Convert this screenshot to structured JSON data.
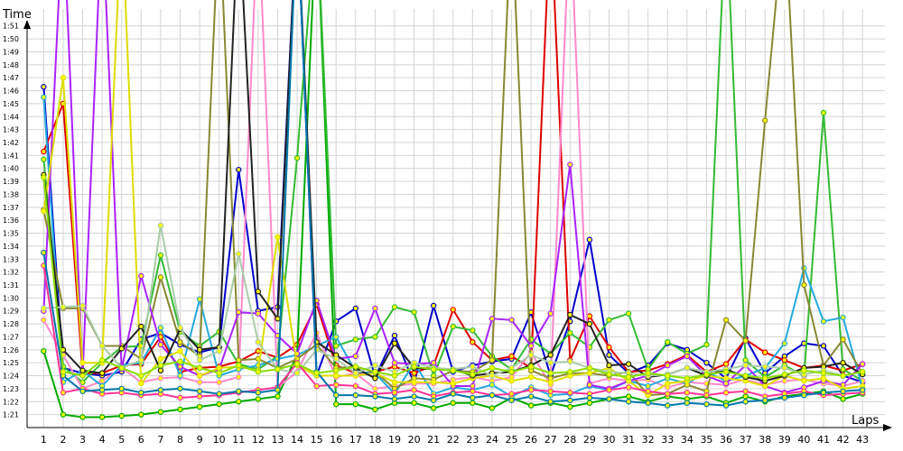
{
  "chart_data": {
    "type": "line",
    "xlabel": "Laps",
    "ylabel": "Time",
    "grid": true,
    "legend": "none",
    "x": [
      1,
      2,
      3,
      4,
      5,
      6,
      7,
      8,
      9,
      10,
      11,
      12,
      13,
      14,
      15,
      16,
      17,
      18,
      19,
      20,
      21,
      22,
      23,
      24,
      25,
      26,
      27,
      28,
      29,
      30,
      31,
      32,
      33,
      34,
      35,
      36,
      37,
      38,
      39,
      40,
      41,
      42,
      43
    ],
    "x_tick_labels": [
      "1",
      "2",
      "3",
      "4",
      "5",
      "6",
      "7",
      "8",
      "9",
      "10",
      "11",
      "12",
      "13",
      "14",
      "15",
      "16",
      "17",
      "18",
      "19",
      "20",
      "21",
      "22",
      "23",
      "24",
      "25",
      "26",
      "27",
      "28",
      "29",
      "30",
      "31",
      "32",
      "33",
      "34",
      "35",
      "36",
      "37",
      "38",
      "39",
      "40",
      "41",
      "42",
      "43"
    ],
    "y_tick_values": [
      81,
      82,
      83,
      84,
      85,
      86,
      87,
      88,
      89,
      90,
      91,
      92,
      93,
      94,
      95,
      96,
      97,
      98,
      99,
      100,
      101,
      102,
      103,
      104,
      105,
      106,
      107,
      108,
      109,
      110,
      111
    ],
    "y_tick_labels": [
      "1:21",
      "1:22",
      "1:23",
      "1:24",
      "1:25",
      "1:26",
      "1:27",
      "1:28",
      "1:29",
      "1:30",
      "1:31",
      "1:32",
      "1:33",
      "1:34",
      "1:35",
      "1:36",
      "1:37",
      "1:38",
      "1:39",
      "1:40",
      "1:41",
      "1:42",
      "1:43",
      "1:44",
      "1:45",
      "1:46",
      "1:47",
      "1:48",
      "1:49",
      "1:50",
      "1:51"
    ],
    "ylim": [
      80,
      113
    ],
    "series": [
      {
        "color": "#0000cc",
        "values": [
          106.3,
          84.6,
          84.2,
          84.0,
          84.3,
          86.8,
          87.3,
          86.4,
          85.8,
          86.2,
          99.9,
          89.0,
          89.3,
          120,
          84.0,
          88.2,
          89.2,
          83.9,
          87.1,
          83.4,
          89.4,
          84.3,
          84.8,
          85.1,
          85.3,
          88.9,
          84.0,
          88.2,
          94.5,
          85.6,
          84.2,
          84.8,
          86.5,
          86.0,
          85.0,
          83.8,
          86.9,
          84.2,
          85.5,
          86.5,
          86.3,
          84.0,
          83.5
        ]
      },
      {
        "color": "#dd0000",
        "values": [
          101.3,
          105.0,
          84.2,
          84.2,
          84.8,
          84.9,
          87.0,
          84.3,
          84.6,
          84.7,
          85.1,
          85.9,
          85.4,
          86.4,
          89.5,
          84.8,
          84.2,
          84.3,
          84.7,
          84.2,
          84.8,
          89.1,
          86.6,
          85.2,
          85.5,
          84.6,
          120,
          85.2,
          88.6,
          86.2,
          84.3,
          84.4,
          84.9,
          85.6,
          84.3,
          84.9,
          86.8,
          85.8,
          85.2,
          84.6,
          84.8,
          84.4,
          84.9
        ]
      },
      {
        "color": "#00aa00",
        "values": [
          85.9,
          81.0,
          80.8,
          80.8,
          80.9,
          81.0,
          81.2,
          81.4,
          81.6,
          81.8,
          82.0,
          82.2,
          82.4,
          85.6,
          120,
          81.8,
          81.8,
          81.4,
          81.9,
          81.9,
          81.5,
          81.9,
          81.9,
          81.5,
          82.3,
          81.7,
          81.9,
          81.6,
          81.9,
          82.2,
          82.4,
          82.0,
          82.4,
          82.2,
          82.4,
          81.9,
          82.4,
          82.0,
          82.4,
          82.6,
          82.8,
          82.2,
          82.6
        ]
      },
      {
        "color": "#33bb33",
        "values": [
          100.7,
          84.7,
          83.5,
          85.0,
          86.2,
          86.3,
          93.3,
          87.4,
          86.3,
          87.4,
          84.9,
          84.5,
          85.5,
          100.8,
          120,
          86.3,
          86.8,
          87.0,
          89.3,
          88.9,
          84.0,
          87.8,
          87.5,
          85.5,
          84.5,
          86.8,
          85.7,
          87.3,
          86.2,
          88.3,
          88.8,
          84.5,
          86.6,
          85.7,
          86.4,
          120,
          85.2,
          83.9,
          84.8,
          84.0,
          104.3,
          84.5,
          83.6
        ]
      },
      {
        "color": "#ff88cc",
        "values": [
          88.3,
          85.6,
          83.0,
          83.6,
          84.6,
          83.5,
          83.8,
          83.9,
          83.5,
          83.5,
          83.9,
          120,
          83.1,
          84.3,
          87.3,
          83.9,
          84.2,
          83.0,
          83.2,
          83.4,
          83.4,
          83.7,
          83.9,
          83.6,
          83.9,
          85.8,
          83.3,
          120,
          83.4,
          83.8,
          83.6,
          83.7,
          83.1,
          83.5,
          83.4,
          83.3,
          83.7,
          83.3,
          83.6,
          83.7,
          83.4,
          83.2,
          83.6
        ]
      },
      {
        "color": "#22aadd",
        "values": [
          105.5,
          83.5,
          84.4,
          83.2,
          84.8,
          85.0,
          87.7,
          84.0,
          89.9,
          84.0,
          84.5,
          84.8,
          85.3,
          85.6,
          86.3,
          87.0,
          84.3,
          84.2,
          82.6,
          85.0,
          82.6,
          83.1,
          82.9,
          83.3,
          82.4,
          83.1,
          82.5,
          82.6,
          83.2,
          82.9,
          83.6,
          83.2,
          83.8,
          83.4,
          84.3,
          83.6,
          84.0,
          84.6,
          86.5,
          92.3,
          88.2,
          88.5,
          83.0
        ]
      },
      {
        "color": "#888833",
        "values": [
          96.8,
          89.2,
          89.2,
          86.3,
          86.3,
          85.3,
          91.6,
          86.6,
          85.5,
          120,
          85.2,
          85.3,
          84.6,
          85.3,
          86.4,
          84.6,
          84.7,
          84.3,
          83.0,
          83.8,
          83.7,
          84.4,
          84.3,
          85.2,
          120,
          84.4,
          83.8,
          84.2,
          84.2,
          84.0,
          84.3,
          82.5,
          82.6,
          83.3,
          82.8,
          88.3,
          86.7,
          103.7,
          120,
          91.0,
          84.8,
          86.8,
          84.1
        ]
      },
      {
        "color": "#aa22ff",
        "values": [
          89.0,
          120,
          84.0,
          120,
          84.5,
          91.7,
          86.4,
          84.7,
          84.0,
          84.5,
          88.9,
          88.8,
          87.1,
          85.7,
          89.8,
          85.3,
          85.5,
          89.2,
          85.0,
          84.9,
          85.0,
          83.2,
          83.2,
          88.4,
          88.3,
          86.3,
          88.8,
          100.3,
          83.3,
          83.0,
          83.6,
          84.0,
          84.8,
          85.5,
          84.0,
          83.4,
          84.8,
          83.2,
          82.7,
          83.1,
          83.6,
          83.3,
          84.9
        ]
      },
      {
        "color": "#dddd00",
        "values": [
          96.7,
          107.0,
          85.0,
          85.0,
          120,
          83.4,
          85.3,
          85.9,
          84.0,
          84.6,
          84.7,
          84.4,
          94.7,
          84.8,
          84.0,
          84.0,
          84.0,
          84.2,
          83.5,
          83.5,
          83.5,
          83.4,
          83.8,
          84.0,
          83.6,
          83.9,
          83.5,
          84.0,
          84.2,
          84.6,
          83.6,
          82.5,
          83.4,
          83.6,
          84.0,
          83.8,
          83.6,
          83.2,
          84.0,
          83.6,
          83.8,
          83.0,
          83.2
        ]
      },
      {
        "color": "#222222",
        "values": [
          99.5,
          86.0,
          84.4,
          84.2,
          86.1,
          87.8,
          84.4,
          87.6,
          86.0,
          86.2,
          120,
          90.5,
          88.4,
          120,
          86.6,
          85.6,
          84.6,
          83.8,
          86.5,
          84.6,
          84.5,
          84.5,
          84.0,
          84.2,
          84.3,
          84.8,
          85.6,
          88.7,
          88.0,
          84.8,
          84.9,
          83.9,
          84.1,
          84.6,
          84.0,
          84.5,
          83.9,
          83.6,
          84.0,
          84.6,
          84.7,
          85.0,
          84.1
        ]
      },
      {
        "color": "#aaccaa",
        "values": [
          89.2,
          89.3,
          89.4,
          86.3,
          84.6,
          85.2,
          95.6,
          87.7,
          85.2,
          85.9,
          93.4,
          86.6,
          84.5,
          84.2,
          86.0,
          85.3,
          84.2,
          84.8,
          84.3,
          85.0,
          84.6,
          84.5,
          84.7,
          84.0,
          84.6,
          85.6,
          85.0,
          85.1,
          84.6,
          84.3,
          84.2,
          84.0,
          84.1,
          84.6,
          84.3,
          84.5,
          84.8,
          84.7,
          84.6,
          84.1,
          84.4,
          84.0,
          84.3
        ]
      },
      {
        "color": "#ff3399",
        "values": [
          92.5,
          82.7,
          83.0,
          82.6,
          82.7,
          82.5,
          82.6,
          82.3,
          82.4,
          82.5,
          82.7,
          82.9,
          83.1,
          85.0,
          83.2,
          83.3,
          83.2,
          82.6,
          82.7,
          82.9,
          82.4,
          82.7,
          82.8,
          82.5,
          82.6,
          82.9,
          82.8,
          82.7,
          82.6,
          82.9,
          83.1,
          82.8,
          82.6,
          82.7,
          82.5,
          82.7,
          82.8,
          82.4,
          82.6,
          82.8,
          82.5,
          82.6,
          82.7
        ]
      },
      {
        "color": "#0077aa",
        "values": [
          93.5,
          84.0,
          82.8,
          82.9,
          83.0,
          82.7,
          82.9,
          83.0,
          82.8,
          82.6,
          82.8,
          82.7,
          82.9,
          120,
          84.3,
          82.5,
          82.5,
          82.4,
          82.2,
          82.4,
          82.1,
          82.6,
          82.3,
          82.5,
          82.1,
          82.4,
          82.0,
          82.1,
          82.3,
          82.2,
          82.0,
          81.9,
          81.7,
          81.9,
          81.8,
          81.7,
          82.0,
          82.1,
          82.3,
          82.5,
          82.7,
          82.8,
          82.9
        ]
      },
      {
        "color": "#88dd00",
        "values": [
          99.3,
          84.3,
          84.0,
          85.2,
          84.6,
          84.0,
          84.8,
          85.1,
          84.6,
          84.2,
          84.8,
          84.3,
          84.5,
          84.9,
          84.2,
          84.4,
          84.7,
          84.3,
          84.0,
          84.7,
          84.5,
          84.4,
          84.1,
          84.6,
          84.3,
          84.7,
          84.2,
          84.3,
          84.6,
          84.1,
          83.9,
          84.2,
          84.0,
          83.8,
          84.1,
          84.3,
          84.0,
          83.8,
          84.1,
          84.4,
          84.2,
          84.0,
          84.3
        ]
      }
    ]
  }
}
